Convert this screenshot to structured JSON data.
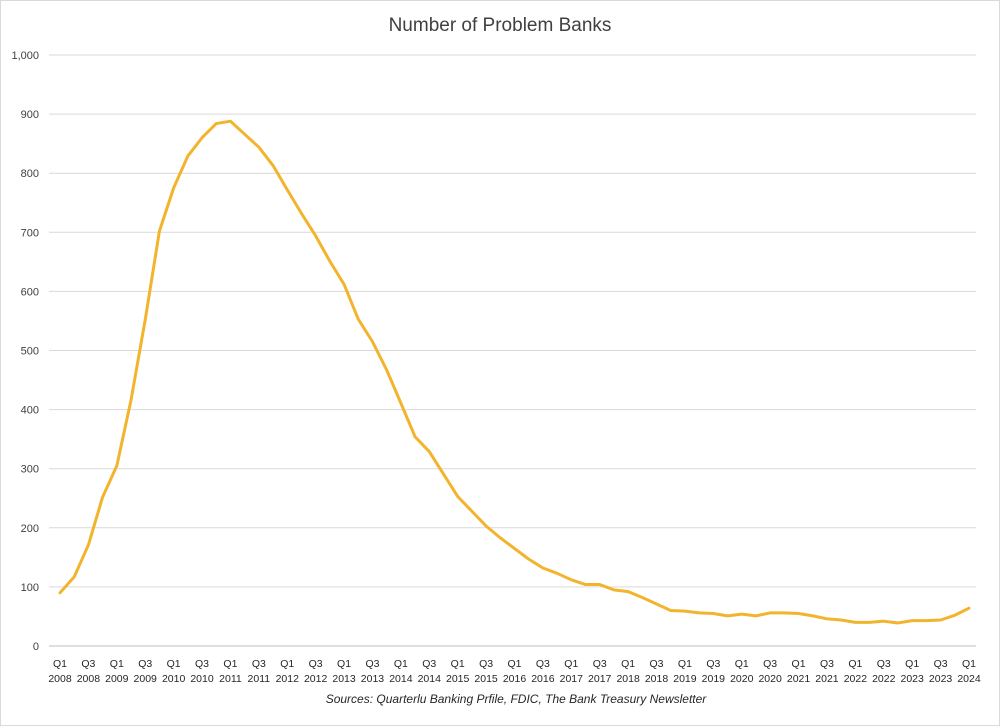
{
  "chart_data": {
    "type": "line",
    "title": "Number of Problem Banks",
    "source": "Sources: Quarterlu Banking Prfile, FDIC, The Bank Treasury Newsletter",
    "xlabel": "",
    "ylabel": "",
    "ylim": [
      0,
      1000
    ],
    "yticks": [
      "0",
      "100",
      "200",
      "300",
      "400",
      "500",
      "600",
      "700",
      "800",
      "900",
      "1,000"
    ],
    "ytick_values": [
      0,
      100,
      200,
      300,
      400,
      500,
      600,
      700,
      800,
      900,
      1000
    ],
    "grid": true,
    "line_color": "#F2B42D",
    "x_tick_labels": [
      {
        "q": "Q1",
        "y": "2008"
      },
      {
        "q": "Q3",
        "y": "2008"
      },
      {
        "q": "Q1",
        "y": "2009"
      },
      {
        "q": "Q3",
        "y": "2009"
      },
      {
        "q": "Q1",
        "y": "2010"
      },
      {
        "q": "Q3",
        "y": "2010"
      },
      {
        "q": "Q1",
        "y": "2011"
      },
      {
        "q": "Q3",
        "y": "2011"
      },
      {
        "q": "Q1",
        "y": "2012"
      },
      {
        "q": "Q3",
        "y": "2012"
      },
      {
        "q": "Q1",
        "y": "2013"
      },
      {
        "q": "Q3",
        "y": "2013"
      },
      {
        "q": "Q1",
        "y": "2014"
      },
      {
        "q": "Q3",
        "y": "2014"
      },
      {
        "q": "Q1",
        "y": "2015"
      },
      {
        "q": "Q3",
        "y": "2015"
      },
      {
        "q": "Q1",
        "y": "2016"
      },
      {
        "q": "Q3",
        "y": "2016"
      },
      {
        "q": "Q1",
        "y": "2017"
      },
      {
        "q": "Q3",
        "y": "2017"
      },
      {
        "q": "Q1",
        "y": "2018"
      },
      {
        "q": "Q3",
        "y": "2018"
      },
      {
        "q": "Q1",
        "y": "2019"
      },
      {
        "q": "Q3",
        "y": "2019"
      },
      {
        "q": "Q1",
        "y": "2020"
      },
      {
        "q": "Q3",
        "y": "2020"
      },
      {
        "q": "Q1",
        "y": "2021"
      },
      {
        "q": "Q3",
        "y": "2021"
      },
      {
        "q": "Q1",
        "y": "2022"
      },
      {
        "q": "Q3",
        "y": "2022"
      },
      {
        "q": "Q1",
        "y": "2023"
      },
      {
        "q": "Q3",
        "y": "2023"
      },
      {
        "q": "Q1",
        "y": "2024"
      }
    ],
    "series": [
      {
        "values": [
          90,
          117,
          171,
          252,
          305,
          416,
          552,
          702,
          775,
          829,
          860,
          884,
          888,
          866,
          844,
          813,
          772,
          732,
          694,
          651,
          612,
          553,
          515,
          467,
          411,
          354,
          329,
          291,
          253,
          228,
          203,
          183,
          165,
          147,
          132,
          123,
          112,
          104,
          104,
          95,
          92,
          82,
          71,
          60,
          59,
          56,
          55,
          51,
          54,
          51,
          56,
          56,
          55,
          51,
          46,
          44,
          40,
          40,
          42,
          39,
          43,
          43,
          44,
          52,
          64
        ]
      }
    ]
  }
}
